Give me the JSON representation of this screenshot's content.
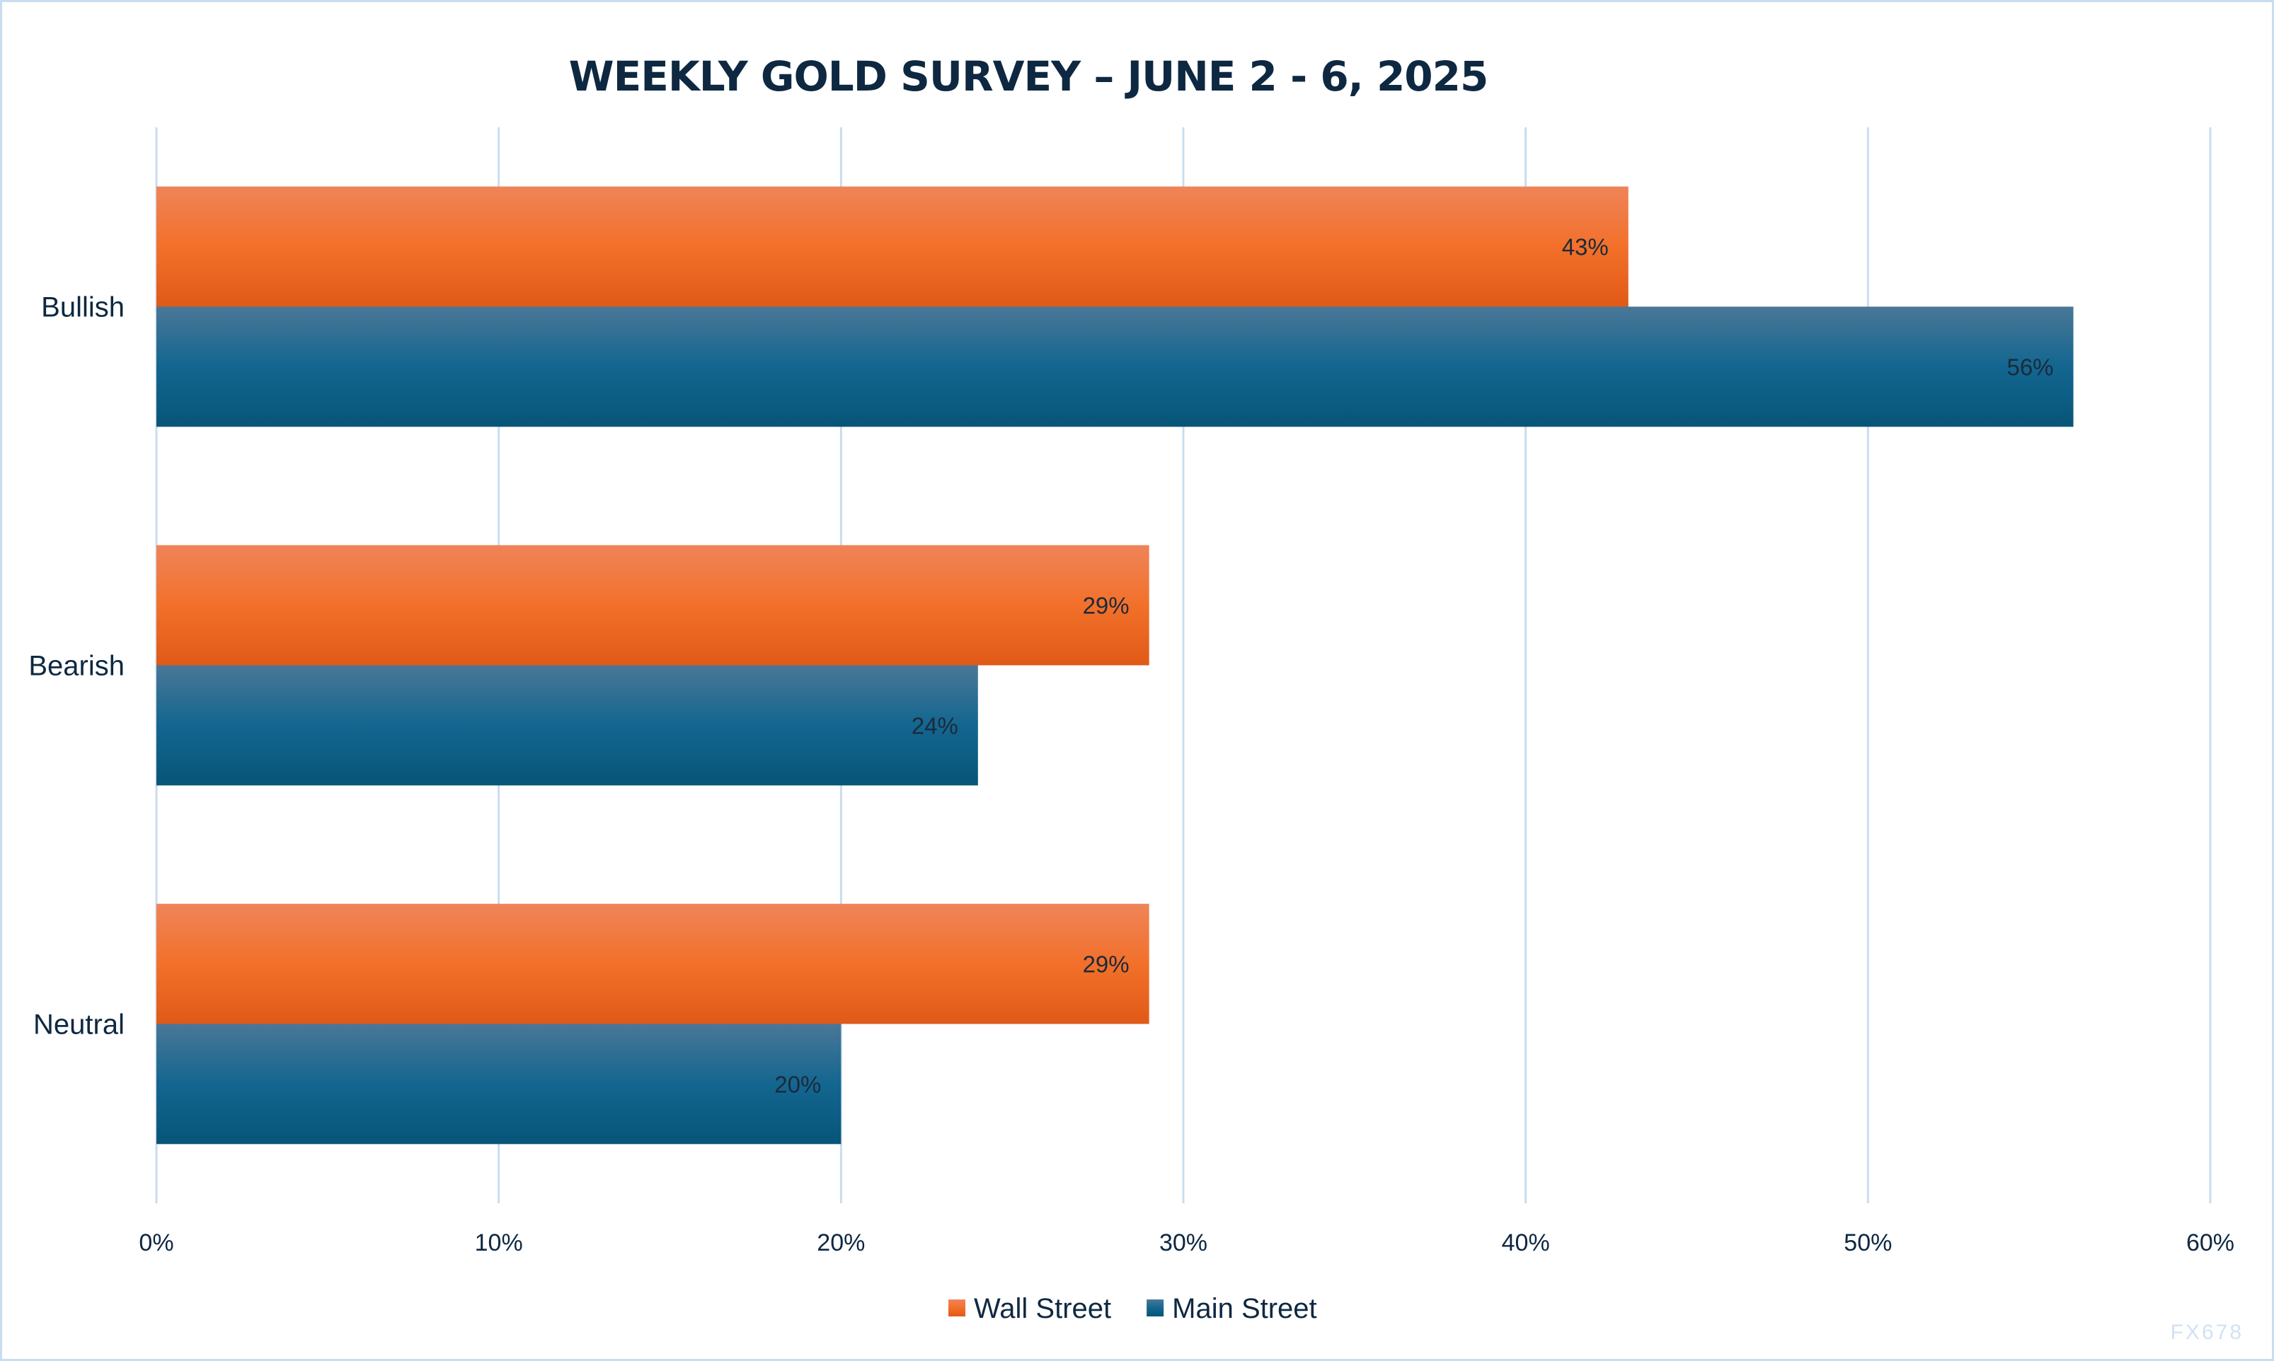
{
  "chart_data": {
    "type": "bar",
    "orientation": "horizontal",
    "title": "WEEKLY GOLD SURVEY – JUNE 2 - 6, 2025",
    "categories": [
      "Bullish",
      "Bearish",
      "Neutral"
    ],
    "series": [
      {
        "name": "Wall Street",
        "values": [
          43,
          29,
          29
        ],
        "color": "#ee6a24"
      },
      {
        "name": "Main Street",
        "values": [
          56,
          24,
          20
        ],
        "color": "#155f85"
      }
    ],
    "data_labels": [
      [
        "43%",
        "29%",
        "29%"
      ],
      [
        "56%",
        "24%",
        "20%"
      ]
    ],
    "xlim": [
      0,
      60
    ],
    "x_ticks": [
      "0%",
      "10%",
      "20%",
      "30%",
      "40%",
      "50%",
      "60%"
    ],
    "xlabel": "",
    "ylabel": "",
    "grid": "vertical",
    "legend": "bottom",
    "gridline_color": "#c9dcf0",
    "text_color": "#0e2841"
  },
  "watermark": "FX678"
}
